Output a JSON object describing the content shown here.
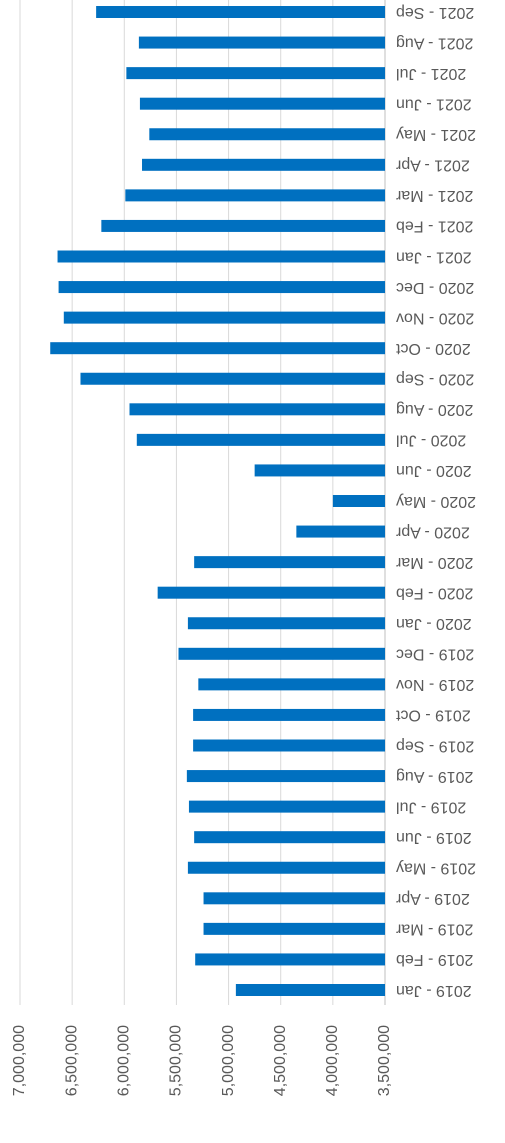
{
  "chart_data": {
    "type": "bar",
    "orientation": "horizontal",
    "categories": [
      "2019 - Jan",
      "2019 - Feb",
      "2019 - Mar",
      "2019 - Apr",
      "2019 - May",
      "2019 - Jun",
      "2019 - Jul",
      "2019 - Aug",
      "2019 - Sep",
      "2019 - Oct",
      "2019 - Nov",
      "2019 - Dec",
      "2020 - Jan",
      "2020 - Feb",
      "2020 - Mar",
      "2020 - Apr",
      "2020 - May",
      "2020 - Jun",
      "2020 - Jul",
      "2020 - Aug",
      "2020 - Sep",
      "2020 - Oct",
      "2020 - Nov",
      "2020 - Dec",
      "2021 - Jan",
      "2021 - Feb",
      "2021 - Mar",
      "2021 - Apr",
      "2021 - May",
      "2021 - Jun",
      "2021 - Jul",
      "2021 - Aug",
      "2021 - Sep"
    ],
    "values": [
      4930000,
      5320000,
      5240000,
      5240000,
      5390000,
      5330000,
      5380000,
      5400000,
      5340000,
      5340000,
      5290000,
      5480000,
      5390000,
      5680000,
      5330000,
      4350000,
      4000000,
      4750000,
      5880000,
      5950000,
      6420000,
      6710000,
      6580000,
      6630000,
      6640000,
      6220000,
      5990000,
      5830000,
      5760000,
      5850000,
      5980000,
      5860000,
      6270000
    ],
    "color": "#0070c0",
    "ylim": [
      3500000,
      7000000
    ],
    "yticks": [
      {
        "value": 3500000,
        "label": "3,500,000"
      },
      {
        "value": 4000000,
        "label": "4,000,000"
      },
      {
        "value": 4500000,
        "label": "4,500,000"
      },
      {
        "value": 5000000,
        "label": "5,000,000"
      },
      {
        "value": 5500000,
        "label": "5,500,000"
      },
      {
        "value": 6000000,
        "label": "6,000,000"
      },
      {
        "value": 6500000,
        "label": "6,500,000"
      },
      {
        "value": 7000000,
        "label": "7,000,000"
      }
    ],
    "grid": true
  }
}
